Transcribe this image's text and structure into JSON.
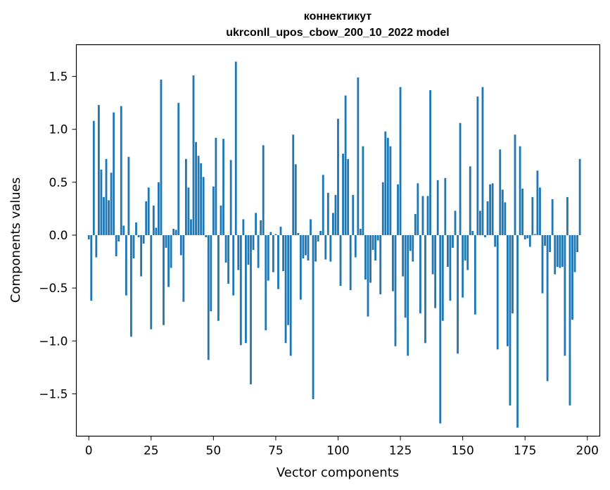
{
  "chart_data": {
    "type": "bar",
    "title": "коннектикут",
    "subtitle": "ukrconll_upos_cbow_200_10_2022 model",
    "xlabel": "Vector components",
    "ylabel": "Components values",
    "xlim": [
      -5,
      205
    ],
    "ylim": [
      -1.9,
      1.8
    ],
    "xticks": [
      0,
      25,
      50,
      75,
      100,
      125,
      150,
      175,
      200
    ],
    "xtick_labels": [
      "0",
      "25",
      "50",
      "75",
      "100",
      "125",
      "150",
      "175",
      "200"
    ],
    "yticks": [
      -1.5,
      -1.0,
      -0.5,
      0.0,
      0.5,
      1.0,
      1.5
    ],
    "ytick_labels": [
      "−1.5",
      "−1.0",
      "−0.5",
      "0.0",
      "0.5",
      "1.0",
      "1.5"
    ],
    "grid": false,
    "bar_color": "#1f77b4",
    "values": [
      -0.04,
      -0.62,
      1.08,
      -0.21,
      1.23,
      0.62,
      0.36,
      0.72,
      0.33,
      0.59,
      1.16,
      -0.2,
      -0.06,
      1.22,
      0.09,
      -0.57,
      0.74,
      -0.96,
      -0.22,
      0.12,
      -0.02,
      -0.39,
      -0.08,
      0.32,
      0.45,
      -0.89,
      0.28,
      0.07,
      0.5,
      1.47,
      -0.85,
      -0.12,
      -0.49,
      -0.31,
      0.06,
      0.05,
      1.25,
      -0.19,
      -0.63,
      0.72,
      0.45,
      0.15,
      1.51,
      0.88,
      0.75,
      0.68,
      0.55,
      -0.02,
      -1.18,
      -0.72,
      0.46,
      0.92,
      -0.81,
      0.28,
      0.91,
      -0.26,
      -0.46,
      0.71,
      -0.57,
      1.64,
      -0.33,
      -1.04,
      0.15,
      -1.02,
      -0.28,
      -1.41,
      -0.14,
      0.21,
      -0.31,
      0.14,
      0.85,
      -0.9,
      -0.43,
      0.03,
      -0.35,
      0.01,
      -0.51,
      0.08,
      -0.34,
      -1.02,
      -0.85,
      -1.14,
      0.95,
      0.67,
      0.02,
      -0.61,
      -0.22,
      -0.19,
      -0.24,
      0.15,
      -1.55,
      -0.25,
      -0.06,
      0.04,
      0.57,
      -0.23,
      0.4,
      -0.25,
      0.21,
      0.38,
      1.1,
      -0.48,
      0.77,
      1.32,
      0.72,
      -0.52,
      0.38,
      -0.21,
      1.49,
      0.06,
      0.84,
      -0.42,
      -0.77,
      -0.45,
      -0.14,
      -0.24,
      -0.05,
      -0.56,
      0.5,
      0.98,
      0.92,
      0.84,
      -0.53,
      -1.05,
      0.48,
      1.4,
      -0.39,
      -0.78,
      -1.14,
      -0.15,
      -0.25,
      0.2,
      0.49,
      -0.74,
      0.37,
      -1.02,
      0.37,
      1.37,
      -0.37,
      -0.69,
      0.52,
      -1.78,
      -0.81,
      0.54,
      -0.3,
      -0.62,
      -0.12,
      0.23,
      -1.12,
      1.06,
      -0.59,
      -0.24,
      -0.33,
      0.65,
      0.04,
      -0.75,
      1.31,
      0.23,
      1.4,
      -0.02,
      0.32,
      0.48,
      0.49,
      -0.11,
      -1.08,
      0.81,
      0.43,
      0.31,
      -1.05,
      -1.61,
      -0.74,
      0.95,
      -1.82,
      0.84,
      0.44,
      -0.04,
      -0.03,
      -0.11,
      0.36,
      0.01,
      0.61,
      0.45,
      -0.55,
      -0.1,
      -1.38,
      -0.16,
      0.34,
      -0.37,
      -0.3,
      -0.31,
      -0.3,
      -1.14,
      0.36,
      -1.61,
      -0.8,
      -0.35,
      -0.16,
      0.72
    ]
  }
}
